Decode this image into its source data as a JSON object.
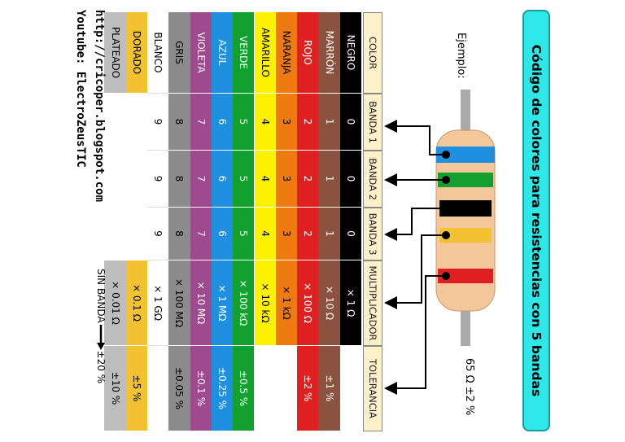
{
  "title": "Código de colores para resistencias con 5 bandas",
  "example": {
    "label": "Ejemplo:",
    "result": "65 Ω ±2 %"
  },
  "table": {
    "header": [
      "COLOR",
      "BANDA 1",
      "BANDA 2",
      "BANDA 3",
      "MULTIPLICADOR",
      "TOLERANCIA"
    ],
    "rows": [
      {
        "color": "NEGRO",
        "bg": "#000000",
        "fg": "#ffffff",
        "band1": "0",
        "band2": "0",
        "band3": "0",
        "multiplier": "× 1 Ω"
      },
      {
        "color": "MARRÓN",
        "bg": "#8a5340",
        "fg": "#ffffff",
        "band1": "1",
        "band2": "1",
        "band3": "1",
        "multiplier": "× 10 Ω",
        "tolerance": "±1 %"
      },
      {
        "color": "ROJO",
        "bg": "#e02020",
        "fg": "#ffffff",
        "band1": "2",
        "band2": "2",
        "band3": "2",
        "multiplier": "× 100 Ω",
        "tolerance": "±2 %"
      },
      {
        "color": "NARANJA",
        "bg": "#f07a12",
        "fg": "#000000",
        "band1": "3",
        "band2": "3",
        "band3": "3",
        "multiplier": "× 1 kΩ"
      },
      {
        "color": "AMARILLO",
        "bg": "#fff200",
        "fg": "#000000",
        "band1": "4",
        "band2": "4",
        "band3": "4",
        "multiplier": "× 10 kΩ"
      },
      {
        "color": "VERDE",
        "bg": "#12a12e",
        "fg": "#ffffff",
        "band1": "5",
        "band2": "5",
        "band3": "5",
        "multiplier": "× 100 kΩ",
        "tolerance": "±0.5 %"
      },
      {
        "color": "AZUL",
        "bg": "#1f8fe0",
        "fg": "#ffffff",
        "band1": "6",
        "band2": "6",
        "band3": "6",
        "multiplier": "× 1 MΩ",
        "tolerance": "±0.25 %"
      },
      {
        "color": "VIOLETA",
        "bg": "#9d4a8f",
        "fg": "#ffffff",
        "band1": "7",
        "band2": "7",
        "band3": "7",
        "multiplier": "× 10 MΩ",
        "tolerance": "±0.1 %"
      },
      {
        "color": "GRIS",
        "bg": "#8c8c8c",
        "fg": "#000000",
        "band1": "8",
        "band2": "8",
        "band3": "8",
        "multiplier": "× 100 MΩ",
        "tolerance": "±0.05 %"
      },
      {
        "color": "BLANCO",
        "bg": "#ffffff",
        "fg": "#000000",
        "band1": "9",
        "band2": "9",
        "band3": "9",
        "multiplier": "× 1 GΩ"
      },
      {
        "color": "DORADO",
        "bg": "#f2c230",
        "fg": "#000000",
        "multiplier": "× 0.1 Ω",
        "tolerance": "±5 %"
      },
      {
        "color": "PLATEADO",
        "bg": "#bdbdbd",
        "fg": "#000000",
        "multiplier": "× 0.01 Ω",
        "tolerance": "±10 %"
      }
    ],
    "no_band": {
      "label": "SIN BANDA",
      "tolerance": "±20 %"
    }
  },
  "footer": {
    "blog": "http://cricoper.blogspot.com",
    "youtube": "Youtube: ElectroZeusTIC"
  }
}
